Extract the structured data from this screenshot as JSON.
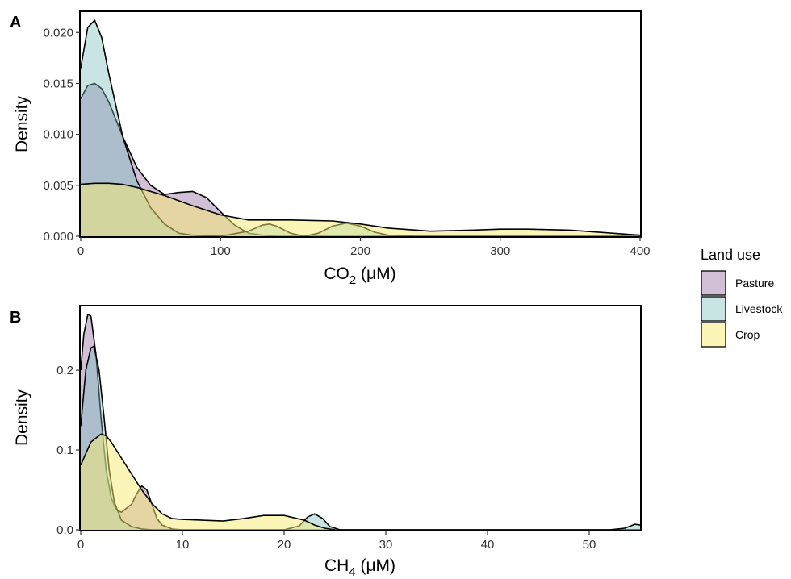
{
  "legend": {
    "title": "Land use",
    "items": [
      {
        "label": "Pasture",
        "color": "#8B5E95"
      },
      {
        "label": "Livestock",
        "color": "#76BDBB"
      },
      {
        "label": "Crop",
        "color": "#F8EB72"
      }
    ]
  },
  "chart_data": [
    {
      "type": "area",
      "panel": "A",
      "xlabel": "CO",
      "xlabel_sub": "2",
      "xlabel_unit": "(μM)",
      "ylabel": "Density",
      "xlim": [
        0,
        400
      ],
      "ylim": [
        0,
        0.022
      ],
      "x_ticks": [
        0,
        100,
        200,
        300,
        400
      ],
      "y_ticks": [
        0.0,
        0.005,
        0.01,
        0.015,
        0.02
      ],
      "x_tick_labels": [
        "0",
        "100",
        "200",
        "300",
        "400"
      ],
      "y_tick_labels": [
        "0.000",
        "0.005",
        "0.010",
        "0.015",
        "0.020"
      ],
      "grid": false,
      "series": [
        {
          "name": "Pasture",
          "x": [
            0,
            5,
            10,
            15,
            20,
            30,
            40,
            50,
            60,
            70,
            80,
            90,
            100,
            110,
            120,
            130,
            140,
            150,
            160,
            180,
            200,
            220,
            240,
            260,
            300,
            350,
            400
          ],
          "y": [
            0.0135,
            0.0148,
            0.015,
            0.0145,
            0.0132,
            0.0098,
            0.0068,
            0.005,
            0.0041,
            0.0043,
            0.0044,
            0.0038,
            0.0024,
            0.0011,
            0.0003,
            0.0001,
            0,
            0,
            0,
            0,
            0,
            0,
            0,
            0,
            0,
            0,
            0
          ]
        },
        {
          "name": "Livestock",
          "x": [
            0,
            5,
            10,
            15,
            20,
            30,
            40,
            50,
            60,
            70,
            80,
            100,
            120,
            130,
            135,
            140,
            150,
            160,
            170,
            180,
            190,
            200,
            210,
            220,
            240,
            300,
            400
          ],
          "y": [
            0.0165,
            0.0205,
            0.0212,
            0.0195,
            0.016,
            0.0098,
            0.0055,
            0.0028,
            0.0012,
            0.0003,
            0.0001,
            0,
            0.0005,
            0.0011,
            0.0012,
            0.001,
            0.0003,
            0,
            0.0003,
            0.001,
            0.0013,
            0.001,
            0.0004,
            0.0001,
            0,
            0,
            0
          ]
        },
        {
          "name": "Crop",
          "x": [
            0,
            10,
            20,
            30,
            40,
            60,
            80,
            100,
            120,
            150,
            180,
            200,
            220,
            250,
            280,
            300,
            320,
            350,
            380,
            400
          ],
          "y": [
            0.0051,
            0.0052,
            0.0052,
            0.0051,
            0.0048,
            0.004,
            0.003,
            0.0021,
            0.0016,
            0.0016,
            0.0015,
            0.0012,
            0.0008,
            0.0005,
            0.0006,
            0.0007,
            0.0007,
            0.0006,
            0.0003,
            0.0001
          ]
        }
      ]
    },
    {
      "type": "area",
      "panel": "B",
      "xlabel": "CH",
      "xlabel_sub": "4",
      "xlabel_unit": "(μM)",
      "ylabel": "Density",
      "xlim": [
        0,
        55
      ],
      "ylim": [
        0,
        0.28
      ],
      "x_ticks": [
        0,
        10,
        20,
        30,
        40,
        50
      ],
      "y_ticks": [
        0.0,
        0.1,
        0.2
      ],
      "x_tick_labels": [
        "0",
        "10",
        "20",
        "30",
        "40",
        "50"
      ],
      "y_tick_labels": [
        "0.0",
        "0.1",
        "0.2"
      ],
      "grid": false,
      "series": [
        {
          "name": "Pasture",
          "x": [
            0,
            0.3,
            0.7,
            1,
            1.5,
            2,
            2.5,
            3,
            3.5,
            4,
            5,
            5.5,
            6,
            6.5,
            7,
            7.5,
            8,
            9,
            10,
            12,
            55
          ],
          "y": [
            0.2,
            0.245,
            0.27,
            0.268,
            0.22,
            0.14,
            0.075,
            0.04,
            0.025,
            0.022,
            0.032,
            0.045,
            0.055,
            0.05,
            0.032,
            0.014,
            0.006,
            0.001,
            0,
            0,
            0
          ]
        },
        {
          "name": "Livestock",
          "x": [
            0,
            0.5,
            1,
            1.3,
            1.8,
            2.3,
            2.8,
            3.3,
            4,
            5,
            6,
            7,
            8,
            10,
            20,
            21.5,
            22.3,
            23,
            23.8,
            24.5,
            25.5,
            52,
            53.5,
            54.5,
            55
          ],
          "y": [
            0.13,
            0.2,
            0.228,
            0.23,
            0.2,
            0.14,
            0.075,
            0.035,
            0.012,
            0.004,
            0.001,
            0,
            0,
            0,
            0,
            0.005,
            0.016,
            0.02,
            0.014,
            0.004,
            0,
            0,
            0.002,
            0.007,
            0.006
          ]
        },
        {
          "name": "Crop",
          "x": [
            0,
            1,
            2,
            2.5,
            3,
            4,
            5,
            6,
            7,
            8,
            9,
            10,
            12,
            14,
            16,
            18,
            20,
            22,
            23,
            24,
            25
          ],
          "y": [
            0.081,
            0.11,
            0.12,
            0.118,
            0.11,
            0.09,
            0.07,
            0.05,
            0.033,
            0.02,
            0.014,
            0.013,
            0.012,
            0.011,
            0.014,
            0.018,
            0.018,
            0.012,
            0.006,
            0.002,
            0
          ]
        }
      ]
    }
  ]
}
